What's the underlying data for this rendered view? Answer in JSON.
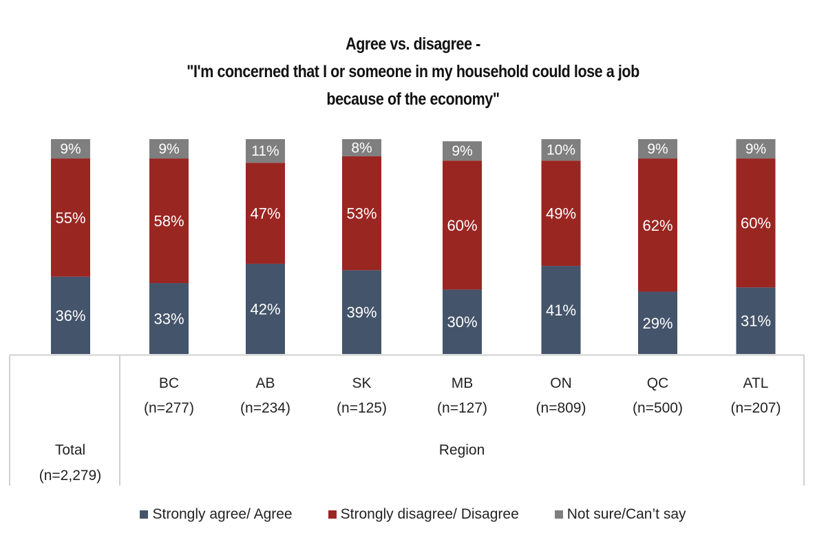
{
  "title_lines": [
    "Agree vs. disagree -",
    "\"I'm concerned that I or someone in my household could lose a job",
    "because of the economy\""
  ],
  "colors": {
    "agree": "#44546a",
    "disagree": "#9a2622",
    "not_sure": "#7f7f7f",
    "label_text": "#ffffff",
    "axis_line": "#d0d0d0"
  },
  "chart_data": {
    "type": "bar",
    "stacked": true,
    "title": "Agree vs. disagree - \"I'm concerned that I or someone in my household could lose a job because of the economy\"",
    "categories": [
      "Total",
      "BC",
      "AB",
      "SK",
      "MB",
      "ON",
      "QC",
      "ATL"
    ],
    "category_samples": [
      "(n=2,279)",
      "(n=277)",
      "(n=234)",
      "(n=125)",
      "(n=127)",
      "(n=809)",
      "(n=500)",
      "(n=207)"
    ],
    "group_labels": [
      {
        "label": "Total",
        "categories": [
          "Total"
        ]
      },
      {
        "label": "Region",
        "categories": [
          "BC",
          "AB",
          "SK",
          "MB",
          "ON",
          "QC",
          "ATL"
        ]
      }
    ],
    "series": [
      {
        "name": "Strongly agree/ Agree",
        "color": "#44546a",
        "values": [
          36,
          33,
          42,
          39,
          30,
          41,
          29,
          31
        ]
      },
      {
        "name": "Strongly disagree/ Disagree",
        "color": "#9a2622",
        "values": [
          55,
          58,
          47,
          53,
          60,
          49,
          62,
          60
        ]
      },
      {
        "name": "Not sure/Can’t say",
        "color": "#7f7f7f",
        "values": [
          9,
          9,
          11,
          8,
          9,
          10,
          9,
          9
        ]
      }
    ],
    "value_suffix": "%",
    "xlabel": "",
    "ylabel": "",
    "ylim": [
      0,
      100
    ],
    "grid": false,
    "legend_position": "bottom"
  }
}
